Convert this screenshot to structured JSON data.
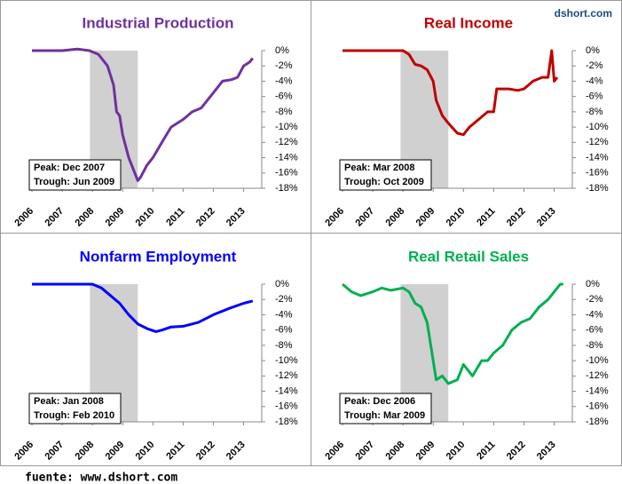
{
  "brand": "dshort.com",
  "footer": "fuente: www.dshort.com",
  "chart_data": [
    {
      "type": "line",
      "title": "Industrial Production",
      "color": "#7030a0",
      "annotations": [
        "Peak: Dec 2007",
        "Trough: Jun 2009"
      ],
      "shade": [
        2007.92,
        2009.5
      ],
      "x": [
        2006,
        2006.5,
        2007,
        2007.5,
        2007.9,
        2008.2,
        2008.5,
        2008.7,
        2008.8,
        2008.9,
        2009,
        2009.2,
        2009.4,
        2009.5,
        2009.6,
        2009.8,
        2010,
        2010.3,
        2010.6,
        2011,
        2011.3,
        2011.6,
        2012,
        2012.3,
        2012.6,
        2012.8,
        2013,
        2013.2,
        2013.3
      ],
      "values": [
        0,
        0,
        0,
        0.2,
        0,
        -0.5,
        -2,
        -4.5,
        -8,
        -8.5,
        -11,
        -14,
        -16,
        -17,
        -16.5,
        -15,
        -14,
        -12,
        -10,
        -9,
        -8,
        -7.5,
        -5.5,
        -4,
        -3.8,
        -3.5,
        -2,
        -1.5,
        -1
      ],
      "xlim": [
        2006,
        2013.6
      ],
      "xticks": [
        2006,
        2007,
        2008,
        2009,
        2010,
        2011,
        2012,
        2013
      ],
      "ylim": [
        -18,
        0
      ],
      "yticks": [
        {
          "value": 0,
          "label": "0%"
        },
        {
          "value": -2,
          "label": "-2%"
        },
        {
          "value": -4,
          "label": "-4%"
        },
        {
          "value": -6,
          "label": "-6%"
        },
        {
          "value": -8,
          "label": "-8%"
        },
        {
          "value": -10,
          "label": "-10%"
        },
        {
          "value": -12,
          "label": "-12%"
        },
        {
          "value": -14,
          "label": "-14%"
        },
        {
          "value": -16,
          "label": "-16%"
        },
        {
          "value": -18,
          "label": "-18%"
        }
      ]
    },
    {
      "type": "line",
      "title": "Real Income",
      "color": "#c00000",
      "annotations": [
        "Peak: Mar 2008",
        "Trough: Oct 2009"
      ],
      "shade": [
        2007.92,
        2009.5
      ],
      "x": [
        2006,
        2007,
        2008,
        2008.2,
        2008.4,
        2008.6,
        2008.8,
        2009,
        2009.1,
        2009.3,
        2009.5,
        2009.8,
        2010,
        2010.2,
        2010.5,
        2010.8,
        2011,
        2011.1,
        2011.5,
        2011.8,
        2012,
        2012.3,
        2012.6,
        2012.8,
        2012.92,
        2013,
        2013.1
      ],
      "values": [
        0,
        0,
        0,
        -0.5,
        -1.8,
        -2,
        -2.5,
        -4,
        -6.5,
        -8.5,
        -9.5,
        -10.8,
        -11,
        -10,
        -9,
        -8,
        -8,
        -5,
        -5,
        -5.2,
        -5,
        -4,
        -3.5,
        -3.5,
        0,
        -4,
        -3.5
      ],
      "xlim": [
        2006,
        2013.6
      ],
      "xticks": [
        2006,
        2007,
        2008,
        2009,
        2010,
        2011,
        2012,
        2013
      ],
      "ylim": [
        -18,
        0
      ],
      "yticks": [
        {
          "value": 0,
          "label": "0%"
        },
        {
          "value": -2,
          "label": "-2%"
        },
        {
          "value": -4,
          "label": "-4%"
        },
        {
          "value": -6,
          "label": "-6%"
        },
        {
          "value": -8,
          "label": "-8%"
        },
        {
          "value": -10,
          "label": "-10%"
        },
        {
          "value": -12,
          "label": "-12%"
        },
        {
          "value": -14,
          "label": "-14%"
        },
        {
          "value": -16,
          "label": "-16%"
        },
        {
          "value": -18,
          "label": "-18%"
        }
      ]
    },
    {
      "type": "line",
      "title": "Nonfarm Employment",
      "color": "#0000ff",
      "annotations": [
        "Peak: Jan 2008",
        "Trough: Feb 2010"
      ],
      "shade": [
        2007.92,
        2009.5
      ],
      "x": [
        2006,
        2008,
        2008.3,
        2008.6,
        2008.9,
        2009.2,
        2009.5,
        2009.8,
        2010.1,
        2010.3,
        2010.6,
        2011,
        2011.5,
        2012,
        2012.5,
        2013,
        2013.3
      ],
      "values": [
        0,
        0,
        -0.5,
        -1.5,
        -2.5,
        -4,
        -5.2,
        -5.8,
        -6.2,
        -6,
        -5.6,
        -5.5,
        -5,
        -4,
        -3.2,
        -2.5,
        -2.2
      ],
      "xlim": [
        2006,
        2013.6
      ],
      "xticks": [
        2006,
        2007,
        2008,
        2009,
        2010,
        2011,
        2012,
        2013
      ],
      "ylim": [
        -18,
        0
      ],
      "yticks": [
        {
          "value": 0,
          "label": "0%"
        },
        {
          "value": -2,
          "label": "-2%"
        },
        {
          "value": -4,
          "label": "-4%"
        },
        {
          "value": -6,
          "label": "-6%"
        },
        {
          "value": -8,
          "label": "-8%"
        },
        {
          "value": -10,
          "label": "-10%"
        },
        {
          "value": -12,
          "label": "-12%"
        },
        {
          "value": -14,
          "label": "-14%"
        },
        {
          "value": -16,
          "label": "-16%"
        },
        {
          "value": -18,
          "label": "-18%"
        }
      ]
    },
    {
      "type": "line",
      "title": "Real Retail Sales",
      "color": "#00b050",
      "annotations": [
        "Peak: Dec 2006",
        "Trough: Mar 2009"
      ],
      "shade": [
        2007.92,
        2009.5
      ],
      "x": [
        2006,
        2006.3,
        2006.6,
        2007,
        2007.3,
        2007.6,
        2008,
        2008.2,
        2008.4,
        2008.6,
        2008.8,
        2009,
        2009.1,
        2009.3,
        2009.5,
        2009.8,
        2010,
        2010.3,
        2010.6,
        2010.8,
        2011,
        2011.3,
        2011.6,
        2011.9,
        2012.2,
        2012.5,
        2012.8,
        2013,
        2013.2,
        2013.3
      ],
      "values": [
        0,
        -1,
        -1.5,
        -1,
        -0.5,
        -0.8,
        -0.5,
        -1,
        -2.5,
        -3,
        -5,
        -10,
        -12.5,
        -12,
        -13,
        -12.5,
        -10.5,
        -12,
        -10,
        -10,
        -9,
        -8,
        -6,
        -5,
        -4.5,
        -3,
        -2,
        -1,
        0,
        0
      ],
      "xlim": [
        2006,
        2013.6
      ],
      "xticks": [
        2006,
        2007,
        2008,
        2009,
        2010,
        2011,
        2012,
        2013
      ],
      "ylim": [
        -18,
        0
      ],
      "yticks": [
        {
          "value": 0,
          "label": "0%"
        },
        {
          "value": -2,
          "label": "-2%"
        },
        {
          "value": -4,
          "label": "-4%"
        },
        {
          "value": -6,
          "label": "-6%"
        },
        {
          "value": -8,
          "label": "-8%"
        },
        {
          "value": -10,
          "label": "-10%"
        },
        {
          "value": -12,
          "label": "-12%"
        },
        {
          "value": -14,
          "label": "-14%"
        },
        {
          "value": -16,
          "label": "-16%"
        },
        {
          "value": -18,
          "label": "-18%"
        }
      ]
    }
  ]
}
